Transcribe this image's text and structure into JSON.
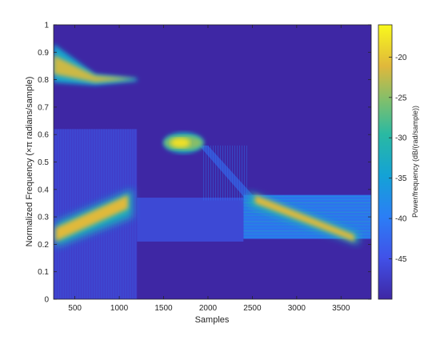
{
  "chart_data": {
    "type": "heatmap",
    "title": "",
    "xlabel": "Samples",
    "ylabel": "Normalized Frequency  (×π radians/sample)",
    "xlim": [
      260,
      3840
    ],
    "ylim": [
      0,
      1
    ],
    "xticks": [
      500,
      1000,
      1500,
      2000,
      2500,
      3000,
      3500
    ],
    "xtick_labels": [
      "500",
      "1000",
      "1500",
      "2000",
      "2500",
      "3000",
      "3500"
    ],
    "yticks": [
      0,
      0.1,
      0.2,
      0.3,
      0.4,
      0.5,
      0.6,
      0.7,
      0.8,
      0.9,
      1
    ],
    "ytick_labels": [
      "0",
      "0.1",
      "0.2",
      "0.3",
      "0.4",
      "0.5",
      "0.6",
      "0.7",
      "0.8",
      "0.9",
      "1"
    ],
    "colormap": "parula",
    "background_level_db": -50,
    "colorbar": {
      "label": "Power/frequency (dB/(rad/sample))",
      "clim": [
        -50,
        -16
      ],
      "ticks": [
        -45,
        -40,
        -35,
        -30,
        -25,
        -20
      ],
      "tick_labels": [
        "-45",
        "-40",
        "-35",
        "-30",
        "-25",
        "-20"
      ]
    },
    "features": [
      {
        "name": "decaying tone near 0.85",
        "x_start": 260,
        "x_end": 1200,
        "freq_start": 0.86,
        "freq_end": 0.8,
        "peak_db": -22
      },
      {
        "name": "rising chirp",
        "x_start": 280,
        "x_end": 1150,
        "freq_start": 0.23,
        "freq_end": 0.36,
        "peak_db": -21
      },
      {
        "name": "short burst",
        "x_start": 1500,
        "x_end": 1950,
        "freq_center": 0.57,
        "peak_db": -18
      },
      {
        "name": "falling chirp",
        "x_start": 2450,
        "x_end": 3700,
        "freq_start": 0.38,
        "freq_end": 0.22,
        "peak_db": -21
      },
      {
        "name": "noise band",
        "x_start": 2400,
        "x_end": 3840,
        "freq_low": 0.22,
        "freq_high": 0.38,
        "peak_db": -40
      }
    ]
  }
}
